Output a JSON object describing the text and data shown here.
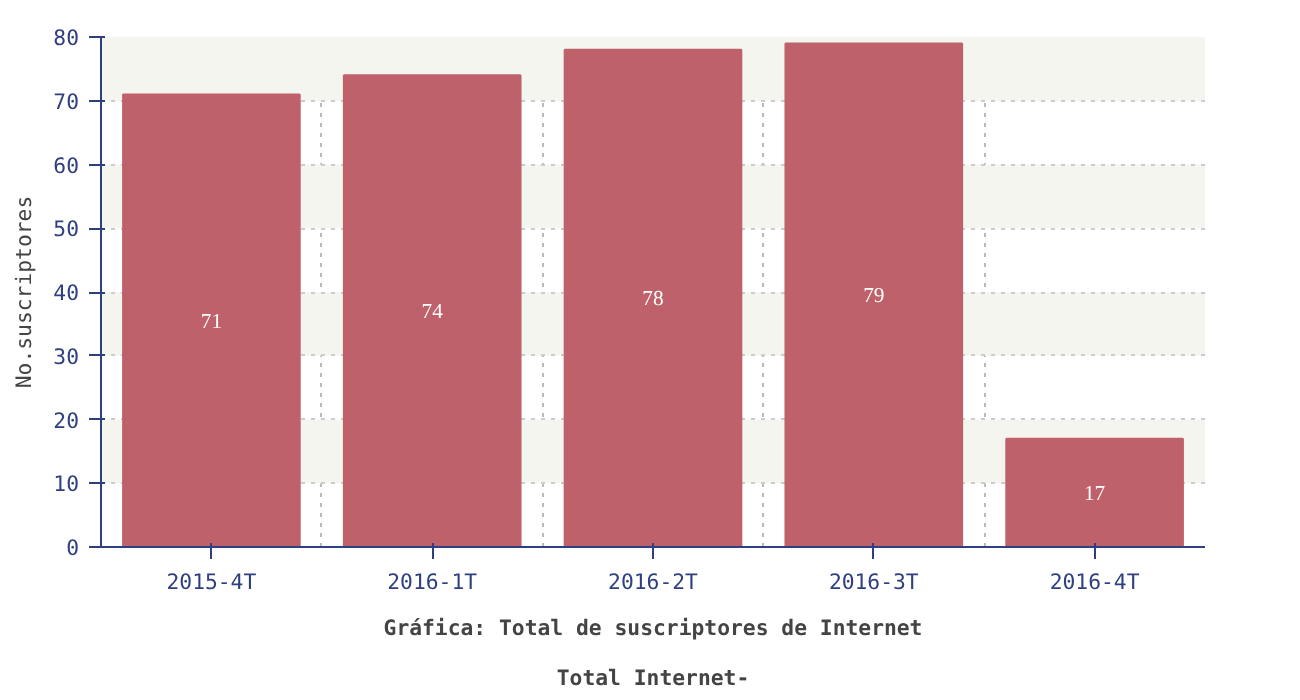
{
  "chart_data": {
    "type": "bar",
    "title": "Gráfica: Total de suscriptores de Internet",
    "subtitle": "Total Internet-",
    "ylabel": "No.suscriptores",
    "categories": [
      "2015-4T",
      "2016-1T",
      "2016-2T",
      "2016-3T",
      "2016-4T"
    ],
    "values": [
      71,
      74,
      78,
      79,
      17
    ],
    "color": "#bf616a",
    "data_labels": true,
    "ylim": [
      0,
      80
    ],
    "yticks": [
      0,
      10,
      20,
      30,
      40,
      50,
      60,
      70,
      80
    ],
    "grid": true
  }
}
